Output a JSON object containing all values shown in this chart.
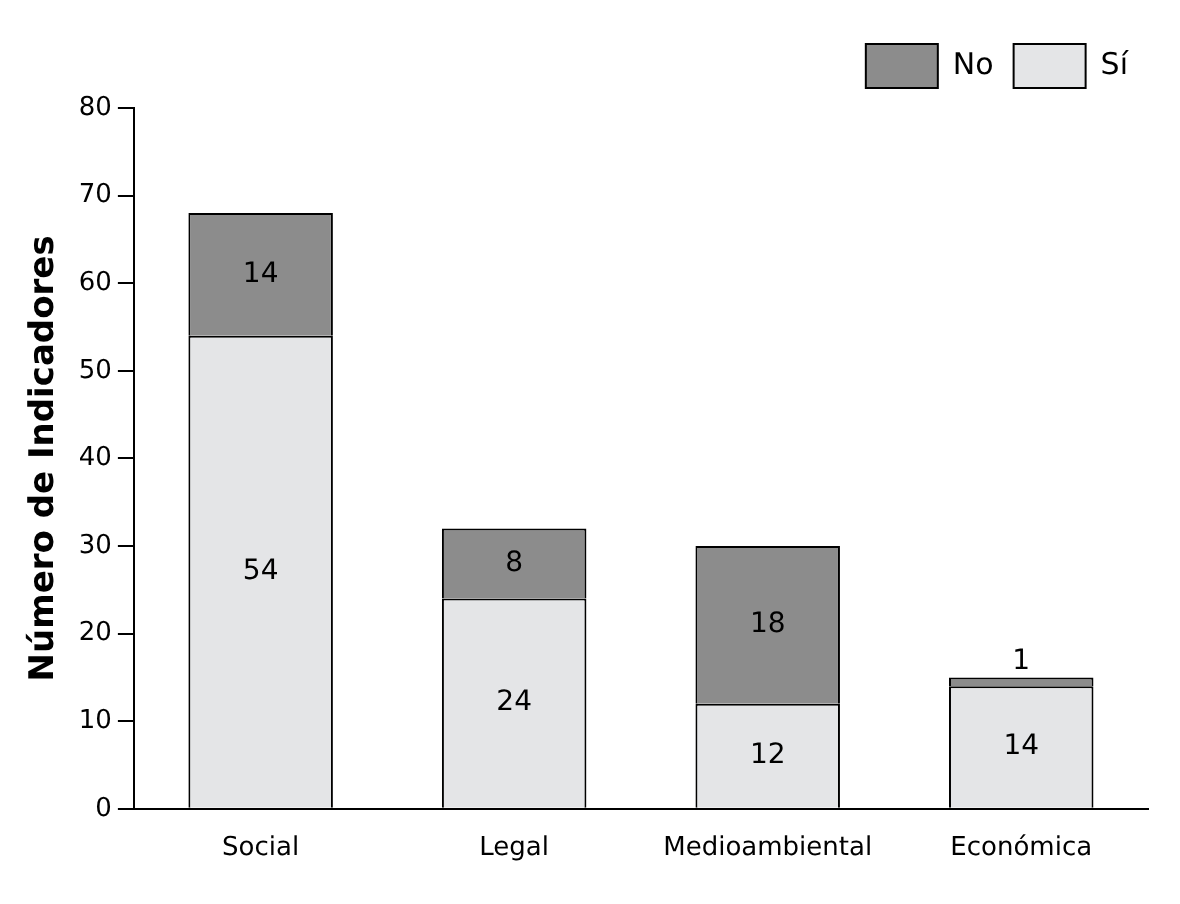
{
  "chart_data": {
    "type": "bar",
    "stacked": true,
    "ylabel": "Número de Indicadores",
    "categories": [
      "Social",
      "Legal",
      "Medioambiental",
      "Económica"
    ],
    "series": [
      {
        "name": "Sí",
        "color": "#e4e5e7",
        "values": [
          54,
          24,
          12,
          14
        ]
      },
      {
        "name": "No",
        "color": "#8c8c8c",
        "values": [
          14,
          8,
          18,
          1
        ]
      }
    ],
    "ylim": [
      0,
      80
    ],
    "yticks": [
      0,
      10,
      20,
      30,
      40,
      50,
      60,
      70,
      80
    ],
    "grid": false,
    "legend": "top right",
    "data_labels": true
  }
}
